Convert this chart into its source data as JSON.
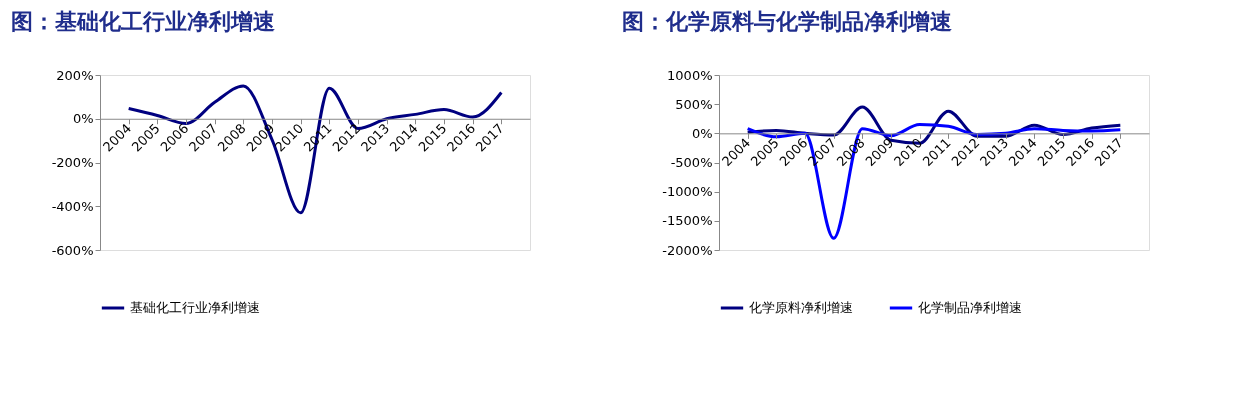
{
  "chart_data": [
    {
      "type": "line",
      "title": "图：基础化工行业净利增速",
      "categories": [
        "2004",
        "2005",
        "2006",
        "2007",
        "2008",
        "2009",
        "2010",
        "2011",
        "2012",
        "2013",
        "2014",
        "2015",
        "2016",
        "2017"
      ],
      "series": [
        {
          "name": "基础化工行业净利增速",
          "color": "#000080",
          "values": [
            47,
            15,
            -22,
            75,
            150,
            -95,
            -430,
            140,
            -45,
            0,
            20,
            42,
            8,
            120
          ]
        }
      ],
      "ylim": [
        -600,
        200
      ],
      "yticks": [
        {
          "value": -600,
          "label": "-600%"
        },
        {
          "value": -400,
          "label": "-400%"
        },
        {
          "value": -200,
          "label": "-200%"
        },
        {
          "value": 0,
          "label": "0%"
        },
        {
          "value": 200,
          "label": "200%"
        }
      ],
      "grid": false,
      "legend": "bottom",
      "marker": "none",
      "line_style": "solid"
    },
    {
      "type": "line",
      "title": "图：化学原料与化学制品净利增速",
      "categories": [
        "2004",
        "2005",
        "2006",
        "2007",
        "2008",
        "2009",
        "2010",
        "2011",
        "2012",
        "2013",
        "2014",
        "2015",
        "2016",
        "2017"
      ],
      "series": [
        {
          "name": "化学原料净利增速",
          "color": "#000080",
          "values": [
            20,
            50,
            0,
            -30,
            450,
            -120,
            -170,
            380,
            -50,
            -50,
            140,
            -20,
            90,
            140
          ]
        },
        {
          "name": "化学制品净利增速",
          "color": "#0000ff",
          "values": [
            80,
            -60,
            0,
            -1800,
            80,
            -40,
            150,
            120,
            -20,
            0,
            80,
            50,
            40,
            60
          ]
        }
      ],
      "ylim": [
        -2000,
        1000
      ],
      "yticks": [
        {
          "value": -2000,
          "label": "-2000%"
        },
        {
          "value": -1500,
          "label": "-1500%"
        },
        {
          "value": -1000,
          "label": "-1000%"
        },
        {
          "value": -500,
          "label": "-500%"
        },
        {
          "value": 0,
          "label": "0%"
        },
        {
          "value": 500,
          "label": "500%"
        },
        {
          "value": 1000,
          "label": "1000%"
        }
      ],
      "grid": false,
      "legend": "bottom",
      "marker": "none",
      "line_style": "solid"
    }
  ]
}
